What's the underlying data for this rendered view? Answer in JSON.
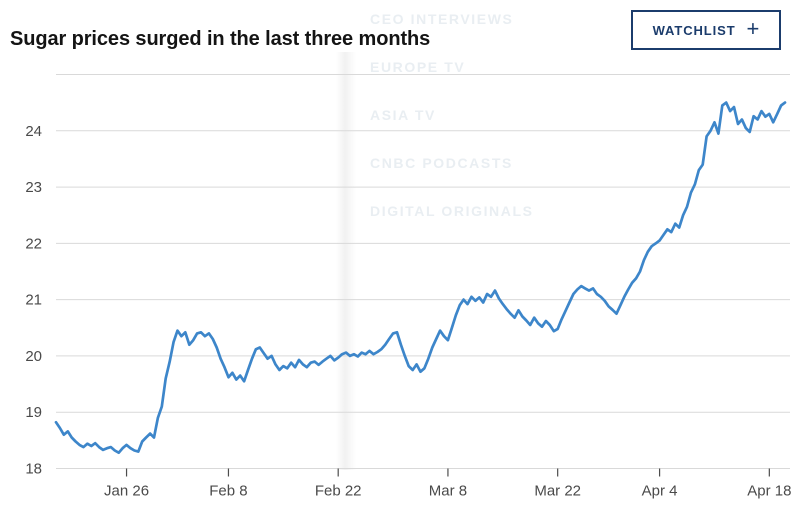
{
  "page": {
    "title": "Sugar prices surged in the last three months",
    "watchlist_button": {
      "label": "WATCHLIST",
      "plus": "+"
    },
    "background_menu": [
      "CEO INTERVIEWS",
      "EUROPE TV",
      "ASIA TV",
      "CNBC PODCASTS",
      "DIGITAL ORIGINALS"
    ]
  },
  "colors": {
    "line": "#3d86ca",
    "navy": "#1b3c6c",
    "grid": "#d9d9d9",
    "axis_label": "#4a4a4a",
    "tick_mark": "#4d4d4d",
    "title_text": "#141414",
    "background_text": "#e9eef2"
  },
  "chart_data": {
    "type": "line",
    "title": "Sugar prices surged in the last three months",
    "xlabel": "",
    "ylabel": "",
    "legend": "none",
    "grid": "horizontal",
    "y_range": [
      18,
      25
    ],
    "y_ticks": [
      18,
      19,
      20,
      21,
      22,
      23,
      24
    ],
    "x_domain_days": [
      0,
      93
    ],
    "sample_step_days": 0.5,
    "x_ticks": [
      {
        "day": 9,
        "label": "Jan 26"
      },
      {
        "day": 22,
        "label": "Feb 8"
      },
      {
        "day": 36,
        "label": "Feb 22"
      },
      {
        "day": 50,
        "label": "Mar 8"
      },
      {
        "day": 64,
        "label": "Mar 22"
      },
      {
        "day": 77,
        "label": "Apr 4"
      },
      {
        "day": 91,
        "label": "Apr 18"
      }
    ],
    "values": [
      18.82,
      18.72,
      18.6,
      18.66,
      18.55,
      18.48,
      18.42,
      18.38,
      18.44,
      18.4,
      18.45,
      18.38,
      18.33,
      18.36,
      18.38,
      18.32,
      18.28,
      18.36,
      18.42,
      18.36,
      18.32,
      18.3,
      18.48,
      18.55,
      18.62,
      18.55,
      18.9,
      19.1,
      19.6,
      19.9,
      20.25,
      20.45,
      20.35,
      20.42,
      20.2,
      20.28,
      20.4,
      20.42,
      20.35,
      20.4,
      20.3,
      20.15,
      19.95,
      19.8,
      19.62,
      19.7,
      19.58,
      19.65,
      19.55,
      19.75,
      19.95,
      20.12,
      20.15,
      20.05,
      19.95,
      20.0,
      19.85,
      19.75,
      19.82,
      19.78,
      19.88,
      19.8,
      19.93,
      19.85,
      19.8,
      19.88,
      19.9,
      19.84,
      19.9,
      19.95,
      20.0,
      19.92,
      19.97,
      20.03,
      20.06,
      20.0,
      20.03,
      19.99,
      20.06,
      20.03,
      20.09,
      20.03,
      20.07,
      20.12,
      20.2,
      20.3,
      20.4,
      20.42,
      20.2,
      20.0,
      19.82,
      19.75,
      19.85,
      19.72,
      19.78,
      19.95,
      20.15,
      20.3,
      20.45,
      20.35,
      20.28,
      20.5,
      20.72,
      20.9,
      21.0,
      20.92,
      21.05,
      20.98,
      21.04,
      20.95,
      21.1,
      21.05,
      21.16,
      21.02,
      20.92,
      20.83,
      20.75,
      20.68,
      20.81,
      20.7,
      20.63,
      20.55,
      20.68,
      20.58,
      20.52,
      20.62,
      20.55,
      20.44,
      20.48,
      20.65,
      20.8,
      20.95,
      21.1,
      21.18,
      21.24,
      21.2,
      21.16,
      21.2,
      21.1,
      21.05,
      20.98,
      20.88,
      20.82,
      20.75,
      20.9,
      21.05,
      21.18,
      21.3,
      21.38,
      21.5,
      21.7,
      21.85,
      21.95,
      22.0,
      22.05,
      22.15,
      22.25,
      22.2,
      22.35,
      22.28,
      22.5,
      22.65,
      22.9,
      23.05,
      23.3,
      23.4,
      23.9,
      24.0,
      24.15,
      23.95,
      24.45,
      24.5,
      24.35,
      24.42,
      24.12,
      24.2,
      24.05,
      23.98,
      24.26,
      24.2,
      24.35,
      24.25,
      24.3,
      24.15,
      24.3,
      24.45,
      24.5
    ]
  }
}
